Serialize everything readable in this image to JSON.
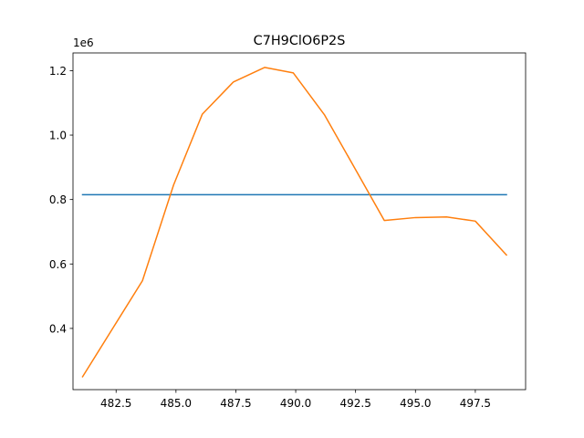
{
  "chart_data": {
    "type": "line",
    "title": "C7H9ClO6P2S",
    "xlabel": "",
    "ylabel": "",
    "y_offset_label": "1e6",
    "xlim": [
      480.7,
      499.6
    ],
    "ylim": [
      210000,
      1255000
    ],
    "x_ticks": [
      482.5,
      485.0,
      487.5,
      490.0,
      492.5,
      495.0,
      497.5
    ],
    "x_tick_labels": [
      "482.5",
      "485.0",
      "487.5",
      "490.0",
      "492.5",
      "495.0",
      "497.5"
    ],
    "y_ticks": [
      400000,
      600000,
      800000,
      1000000,
      1200000
    ],
    "y_tick_labels": [
      "0.4",
      "0.6",
      "0.8",
      "1.0",
      "1.2"
    ],
    "grid": false,
    "series": [
      {
        "color": "#1f77b4",
        "x": [
          481.1,
          498.8
        ],
        "y": [
          815000,
          815000
        ]
      },
      {
        "color": "#ff7f0e",
        "x": [
          481.1,
          482.4,
          483.6,
          484.9,
          486.1,
          487.4,
          488.7,
          489.9,
          491.2,
          492.5,
          493.7,
          495.0,
          496.3,
          497.5,
          498.8
        ],
        "y": [
          250000,
          405000,
          548000,
          845000,
          1065000,
          1165000,
          1210000,
          1193000,
          1063000,
          893000,
          735000,
          744000,
          746000,
          733000,
          628000
        ]
      }
    ]
  }
}
